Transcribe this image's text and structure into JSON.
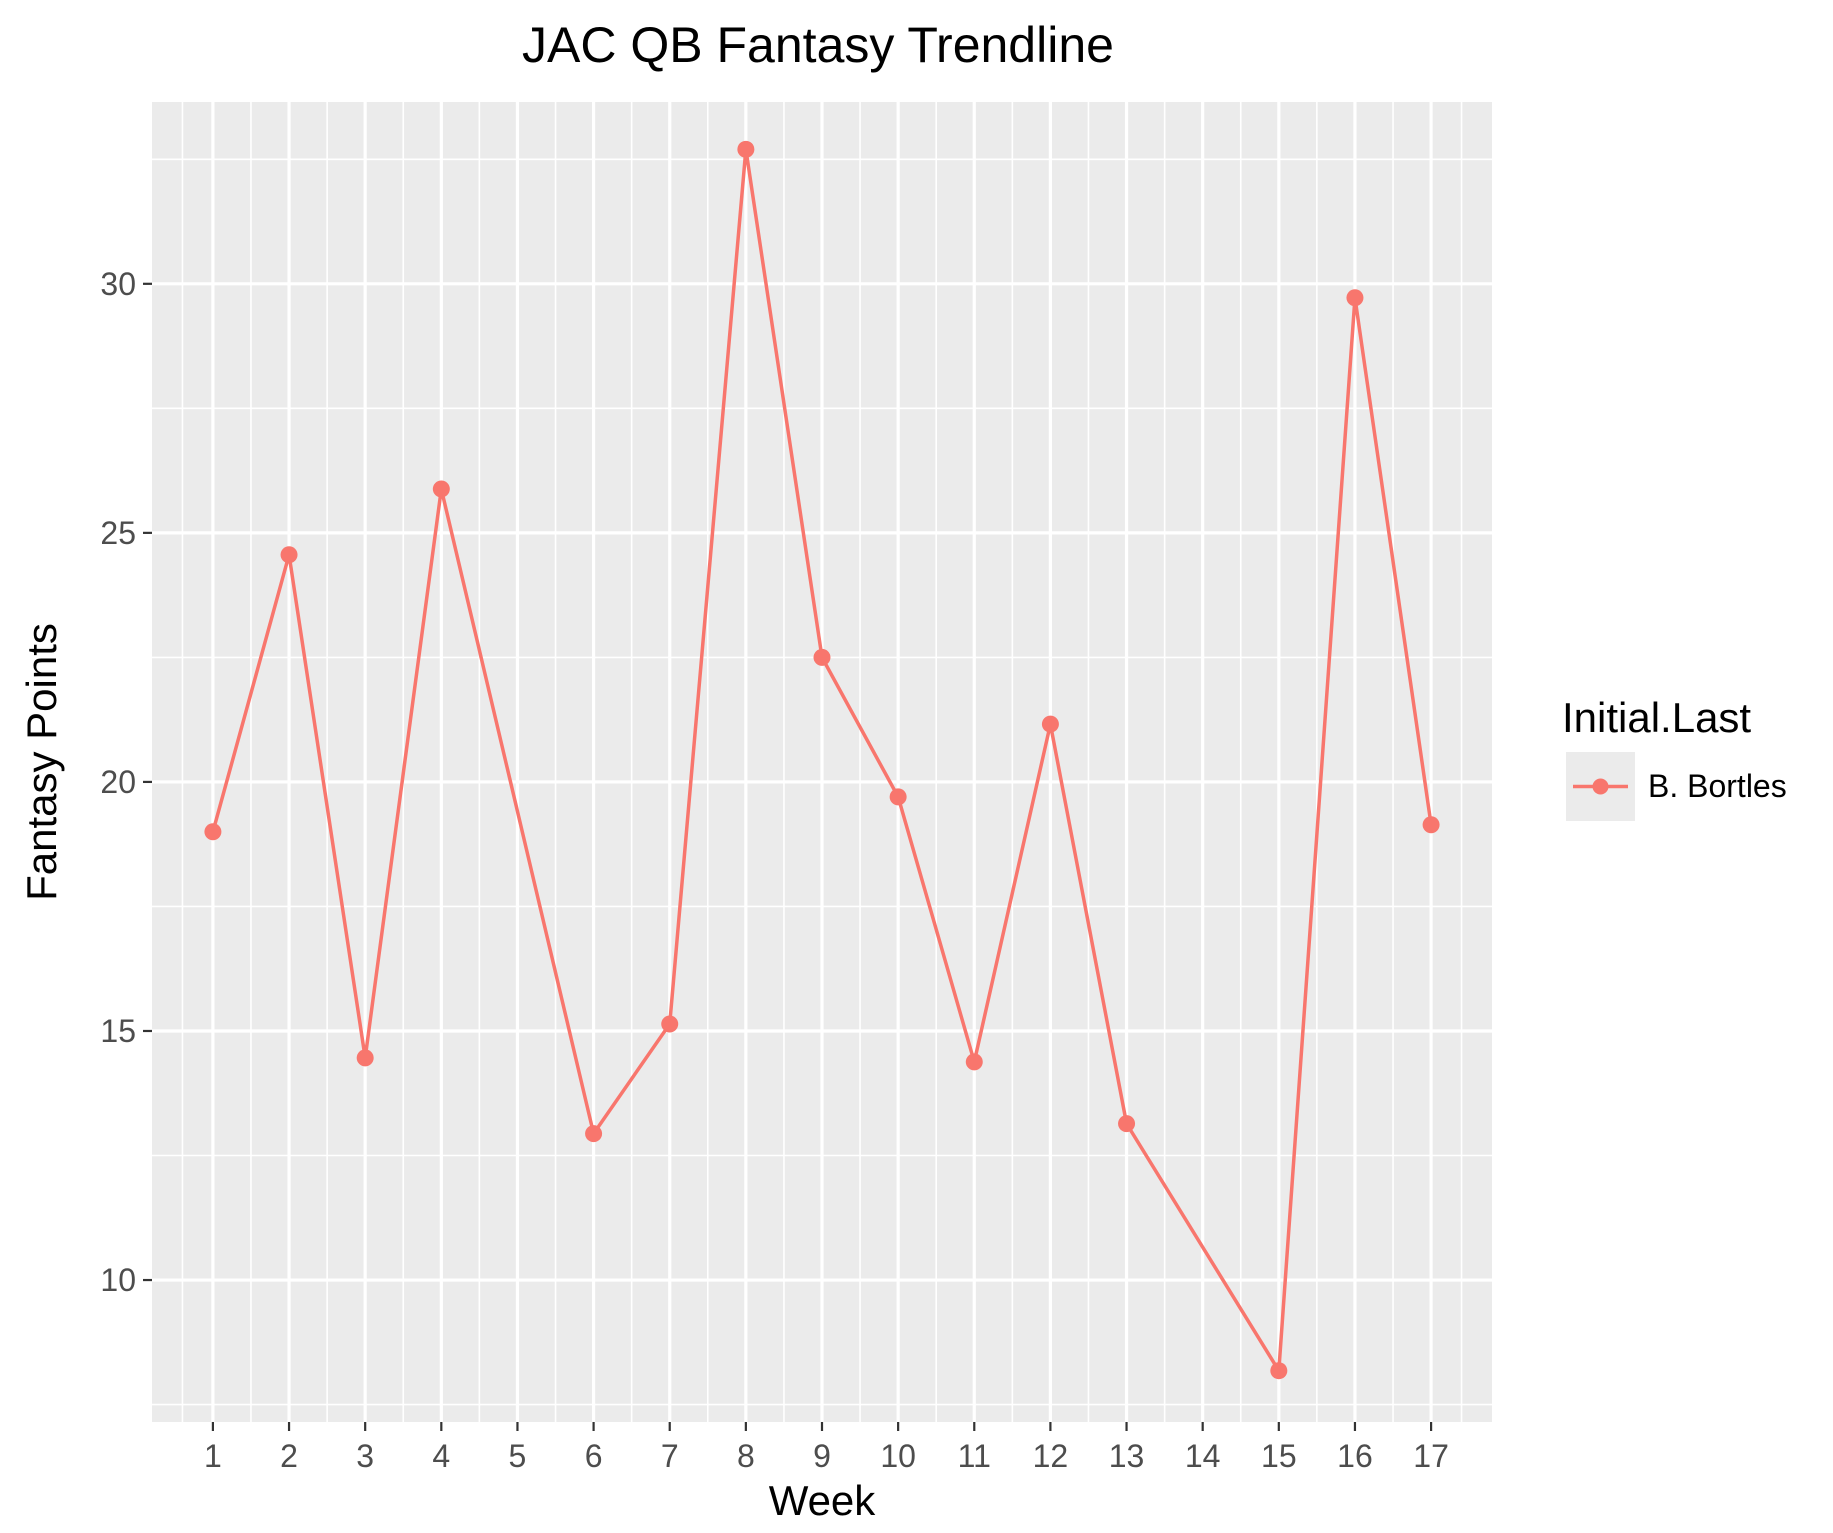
{
  "chart_data": {
    "type": "line",
    "title": "JAC QB Fantasy Trendline",
    "xlabel": "Week",
    "ylabel": "Fantasy Points",
    "x_ticks": [
      1,
      2,
      3,
      4,
      5,
      6,
      7,
      8,
      9,
      10,
      11,
      12,
      13,
      14,
      15,
      16,
      17
    ],
    "y_ticks": [
      10,
      15,
      20,
      25,
      30
    ],
    "xlim": [
      0.2,
      17.8
    ],
    "ylim": [
      7.15,
      33.65
    ],
    "grid": true,
    "legend": {
      "title": "Initial.Last",
      "placement": "right"
    },
    "series": [
      {
        "name": "B. Bortles",
        "color": "#F8766D",
        "x": [
          1,
          2,
          3,
          4,
          6,
          7,
          8,
          9,
          10,
          11,
          12,
          13,
          15,
          16,
          17
        ],
        "y": [
          19.0,
          24.56,
          14.46,
          25.88,
          12.94,
          15.14,
          32.7,
          22.5,
          19.7,
          14.38,
          21.16,
          13.14,
          8.18,
          29.72,
          19.14
        ]
      }
    ]
  }
}
